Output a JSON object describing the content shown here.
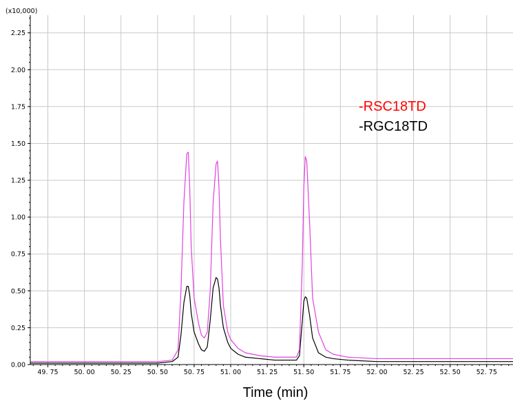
{
  "chart_data": {
    "type": "line",
    "title": "",
    "xlabel": "Time (min)",
    "ylabel": "",
    "y_scale_label": "(x10,000)",
    "xlim": [
      49.63,
      52.93
    ],
    "ylim": [
      0,
      2.37
    ],
    "x_ticks": [
      "49.75",
      "50.00",
      "50.25",
      "50.50",
      "50.75",
      "51.00",
      "51.25",
      "51.50",
      "51.75",
      "52.00",
      "52.25",
      "52.50",
      "52.75"
    ],
    "y_ticks": [
      "0.00",
      "0.25",
      "0.50",
      "0.75",
      "1.00",
      "1.25",
      "1.50",
      "1.75",
      "2.00",
      "2.25"
    ],
    "grid": true,
    "legend_position": "top-right",
    "colors": {
      "RSC18TD": "#ff0000",
      "RSC18TD_line": "#e040e0",
      "RGC18TD": "#000000"
    },
    "series": [
      {
        "name": "-RSC18TD",
        "x": [
          49.63,
          49.75,
          50.0,
          50.25,
          50.5,
          50.6,
          50.64,
          50.66,
          50.68,
          50.7,
          50.71,
          50.72,
          50.73,
          50.75,
          50.78,
          50.8,
          50.82,
          50.84,
          50.86,
          50.88,
          50.9,
          50.91,
          50.92,
          50.93,
          50.95,
          50.98,
          51.0,
          51.05,
          51.1,
          51.2,
          51.3,
          51.4,
          51.45,
          51.47,
          51.49,
          51.5,
          51.51,
          51.52,
          51.54,
          51.56,
          51.6,
          51.65,
          51.7,
          51.8,
          52.0,
          52.25,
          52.5,
          52.75,
          52.93
        ],
        "y": [
          0.02,
          0.02,
          0.02,
          0.02,
          0.02,
          0.03,
          0.1,
          0.5,
          1.1,
          1.43,
          1.44,
          1.2,
          0.8,
          0.45,
          0.28,
          0.2,
          0.18,
          0.22,
          0.5,
          1.1,
          1.36,
          1.38,
          1.2,
          0.85,
          0.4,
          0.22,
          0.17,
          0.11,
          0.08,
          0.06,
          0.05,
          0.05,
          0.05,
          0.1,
          0.7,
          1.2,
          1.41,
          1.38,
          0.95,
          0.45,
          0.22,
          0.1,
          0.07,
          0.05,
          0.04,
          0.04,
          0.04,
          0.04,
          0.04
        ]
      },
      {
        "name": "-RGC18TD",
        "x": [
          49.63,
          49.75,
          50.0,
          50.25,
          50.5,
          50.6,
          50.64,
          50.66,
          50.68,
          50.7,
          50.71,
          50.72,
          50.73,
          50.75,
          50.78,
          50.8,
          50.82,
          50.84,
          50.86,
          50.88,
          50.9,
          50.91,
          50.92,
          50.93,
          50.95,
          50.98,
          51.0,
          51.05,
          51.1,
          51.2,
          51.3,
          51.4,
          51.45,
          51.47,
          51.49,
          51.5,
          51.51,
          51.52,
          51.54,
          51.56,
          51.6,
          51.65,
          51.7,
          51.8,
          52.0,
          52.25,
          52.5,
          52.75,
          52.93
        ],
        "y": [
          0.01,
          0.01,
          0.01,
          0.01,
          0.01,
          0.02,
          0.05,
          0.2,
          0.42,
          0.53,
          0.53,
          0.47,
          0.35,
          0.22,
          0.14,
          0.1,
          0.09,
          0.12,
          0.3,
          0.52,
          0.59,
          0.58,
          0.52,
          0.4,
          0.25,
          0.15,
          0.11,
          0.07,
          0.05,
          0.04,
          0.03,
          0.03,
          0.03,
          0.06,
          0.3,
          0.43,
          0.46,
          0.45,
          0.33,
          0.18,
          0.08,
          0.05,
          0.04,
          0.03,
          0.02,
          0.02,
          0.02,
          0.02,
          0.02
        ]
      }
    ]
  }
}
